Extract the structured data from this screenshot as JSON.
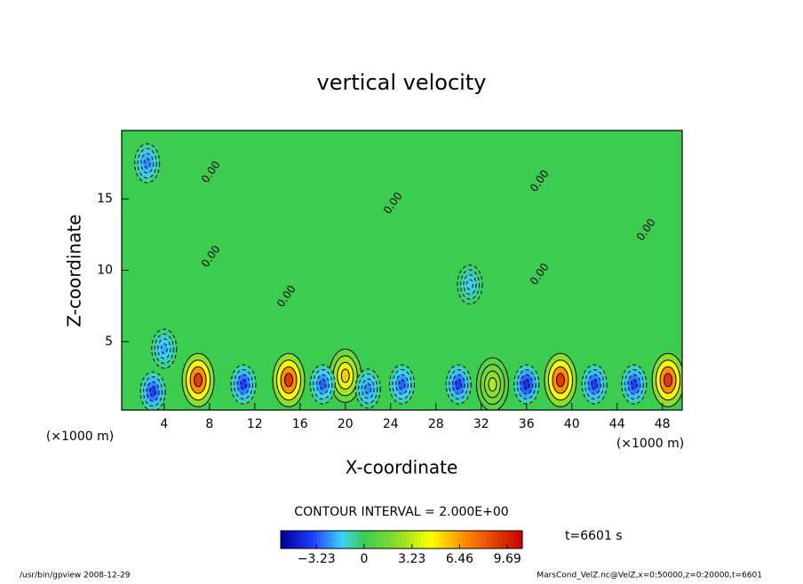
{
  "chart_data": {
    "type": "contour",
    "title": "vertical velocity",
    "x_label": "X-coordinate",
    "y_label": "Z-coordinate",
    "x_unit": "(×1000 m)",
    "y_unit": "(×1000 m)",
    "xlim": [
      0.25,
      49.75
    ],
    "ylim": [
      0.2,
      19.8
    ],
    "xticks": [
      4,
      8,
      12,
      16,
      20,
      24,
      28,
      32,
      36,
      40,
      44,
      48
    ],
    "yticks": [
      5,
      10,
      15
    ],
    "contour_label": "0.00",
    "contour_interval": "CONTOUR INTERVAL = 2.000E+00",
    "time_label": "t=6601 s",
    "clim": [
      -5.65,
      10.7
    ],
    "cticks": [
      {
        "value": -3.23,
        "label": "−3.23"
      },
      0,
      3.23,
      6.46,
      9.69
    ],
    "peaks": {
      "x": [
        7,
        15,
        39,
        48.5,
        20,
        33,
        3,
        11,
        18,
        25,
        30,
        36,
        42,
        45.5,
        2.5,
        4,
        22,
        31
      ],
      "z": [
        2.3,
        2.3,
        2.3,
        2.3,
        2.6,
        2,
        1.5,
        2,
        2,
        2,
        2,
        2,
        2,
        2,
        17.5,
        4.5,
        1.7,
        9
      ],
      "values": [
        9,
        9,
        9,
        9,
        5.5,
        3,
        -3.5,
        -3.5,
        -3,
        -3,
        -3.5,
        -4,
        -3.5,
        -3.5,
        -2.5,
        -2,
        -2.5,
        -1.5
      ]
    },
    "footer_left": "/usr/bin/gpview   2008-12-29",
    "footer_right": "MarsCond_VelZ.nc@VelZ,x=0:50000,z=0:20000,t=6601"
  }
}
